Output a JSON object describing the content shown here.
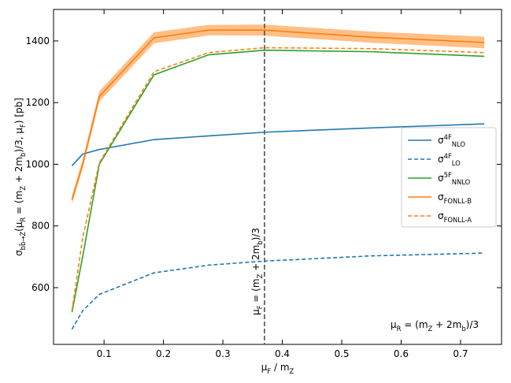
{
  "chart_data": {
    "type": "line",
    "xlabel": "μ_{F} / m_{Z}",
    "ylabel": "σ_{bb̄→Z}(μ_{R} = (m_{Z} + 2m_{b})/3, μ_{F}) [pb]",
    "annotation": "μ_{R} = (m_{Z} + 2m_{b})/3",
    "vline": {
      "x": 0.37,
      "label": "μ_{F} = (m_{Z} + 2m_{b})/3",
      "color": "#444444"
    },
    "x": [
      0.046,
      0.064,
      0.092,
      0.184,
      0.276,
      0.37,
      0.55,
      0.74
    ],
    "series": [
      {
        "name": "σ^{4F}_{NLO}",
        "color": "#1f77b4",
        "dash": false,
        "values": [
          995,
          1033,
          1048,
          1080,
          1092,
          1104,
          1118,
          1131
        ]
      },
      {
        "name": "σ^{4F}_{LO}",
        "color": "#1f77b4",
        "dash": true,
        "values": [
          465,
          525,
          578,
          648,
          673,
          686,
          703,
          712
        ]
      },
      {
        "name": "σ^{5F}_{NNLO}",
        "color": "#2ca02c",
        "dash": false,
        "values": [
          520,
          700,
          1000,
          1290,
          1355,
          1370,
          1365,
          1350
        ]
      },
      {
        "name": "σ_{FONLL-B}",
        "color": "#ff7f0e",
        "dash": false,
        "values": [
          885,
          1000,
          1220,
          1410,
          1435,
          1435,
          1412,
          1395
        ],
        "lower": [
          872,
          985,
          1203,
          1392,
          1418,
          1417,
          1394,
          1376
        ],
        "upper": [
          898,
          1015,
          1237,
          1428,
          1452,
          1453,
          1430,
          1414
        ]
      },
      {
        "name": "σ_{FONLL-A}",
        "color": "#ff7f0e",
        "dash": true,
        "values": [
          525,
          760,
          1005,
          1300,
          1362,
          1378,
          1375,
          1362
        ]
      }
    ],
    "xlim": [
      0.015,
      0.769
    ],
    "ylim": [
      416,
      1502
    ],
    "xticks": [
      0.1,
      0.2,
      0.3,
      0.4,
      0.5,
      0.6,
      0.7
    ],
    "yticks": [
      600,
      800,
      1000,
      1200,
      1400
    ],
    "legend": "right"
  }
}
